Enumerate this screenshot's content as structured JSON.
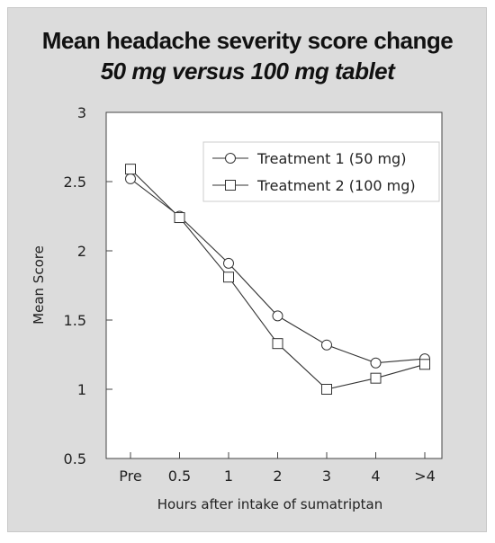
{
  "chart_data": {
    "type": "line",
    "title": "Mean headache severity score change",
    "subtitle": "50 mg versus 100 mg tablet",
    "xlabel": "Hours after intake of sumatriptan",
    "ylabel": "Mean Score",
    "categories": [
      "Pre",
      "0.5",
      "1",
      "2",
      "3",
      "4",
      ">4"
    ],
    "ylim": [
      0.5,
      3
    ],
    "yticks": [
      "0.5",
      "1",
      "1.5",
      "2",
      "2.5",
      "3"
    ],
    "grid": false,
    "legend_position": "top-right",
    "series": [
      {
        "name": "Treatment 1 (50 mg)",
        "marker": "circle",
        "values": [
          2.52,
          2.25,
          1.91,
          1.53,
          1.32,
          1.19,
          1.22
        ]
      },
      {
        "name": "Treatment 2 (100 mg)",
        "marker": "square",
        "values": [
          2.59,
          2.24,
          1.81,
          1.33,
          1.0,
          1.08,
          1.18
        ]
      }
    ],
    "colors": {
      "background": "#dcdcdc",
      "plot": "#ffffff",
      "line": "#333333"
    }
  }
}
